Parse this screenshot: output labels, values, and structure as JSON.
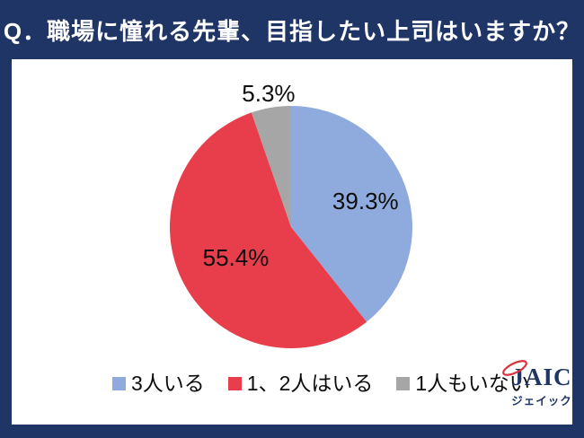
{
  "header": {
    "title": "Q．職場に憧れる先輩、目指したい上司はいますか？"
  },
  "chart_data": {
    "type": "pie",
    "title": "職場に憧れる先輩、目指したい上司はいますか？",
    "categories": [
      "3人いる",
      "1、2人はいる",
      "1人もいない"
    ],
    "values": [
      39.3,
      55.4,
      5.3
    ],
    "labels": [
      "39.3%",
      "55.4%",
      "5.3%"
    ],
    "colors": [
      "#8FAADC",
      "#E83E4B",
      "#A6A6A6"
    ],
    "start_angle_deg": 0,
    "direction": "clockwise",
    "legend_position": "bottom",
    "label_radius_fraction": [
      0.65,
      0.52,
      1.12
    ],
    "label_color": "#0d0d0d"
  },
  "legend": {
    "items": [
      {
        "label": "3人いる",
        "color": "#8FAADC"
      },
      {
        "label": "1、2人はいる",
        "color": "#E83E4B"
      },
      {
        "label": "1人もいない",
        "color": "#A6A6A6"
      }
    ]
  },
  "branding": {
    "logo_text": "JAIC",
    "logo_subtext": "ジェイック",
    "logo_color": "#1f3566",
    "logo_accent_color": "#d9333f"
  },
  "colors": {
    "frame_navy": "#1f3566",
    "panel_white": "#ffffff",
    "title_text": "#ffffff"
  }
}
